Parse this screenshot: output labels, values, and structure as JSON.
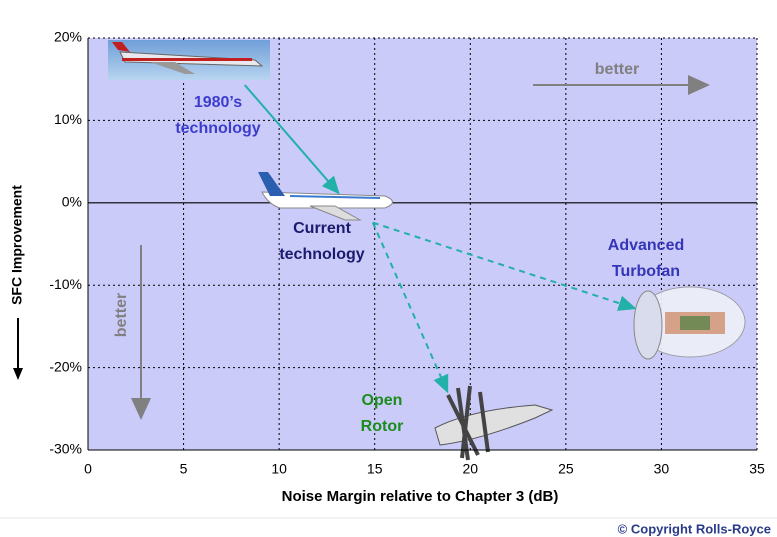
{
  "chart_data": {
    "type": "annotated-scatter",
    "x_label": "Noise Margin relative to Chapter 3 (dB)",
    "y_label": "SFC Improvement",
    "xlim": [
      0,
      35
    ],
    "xticks": [
      0,
      5,
      10,
      15,
      20,
      25,
      30,
      35
    ],
    "ylim": [
      -30,
      20
    ],
    "yticks": [
      {
        "value": -30,
        "label": "-30%"
      },
      {
        "value": -20,
        "label": "-20%"
      },
      {
        "value": -10,
        "label": "-10%"
      },
      {
        "value": 0,
        "label": "0%"
      },
      {
        "value": 10,
        "label": "10%"
      },
      {
        "value": 20,
        "label": "20%"
      }
    ],
    "grid": true,
    "points": [
      {
        "label": [
          "1980’s",
          "technology"
        ],
        "color": "#3d3dcc"
      },
      {
        "label": [
          "Current",
          "technology"
        ],
        "color": "#1b1b6e"
      },
      {
        "label": [
          "Open",
          "Rotor"
        ],
        "color": "#1c8c1c"
      },
      {
        "label": [
          "Advanced",
          "Turbofan"
        ],
        "color": "#3535b8"
      }
    ],
    "arrows": [
      {
        "from": [
          8.2,
          14.3
        ],
        "to": [
          13.1,
          1.2
        ],
        "style": "solid"
      },
      {
        "from": [
          14.9,
          -2.4
        ],
        "to": [
          18.8,
          -22.9
        ],
        "style": "dashed"
      },
      {
        "from": [
          14.9,
          -2.4
        ],
        "to": [
          28.6,
          -12.8
        ],
        "style": "dashed"
      }
    ],
    "arrow_color": "#22b0a8",
    "better_labels": [
      "better",
      "better"
    ],
    "copyright": "© Copyright Rolls-Royce"
  }
}
